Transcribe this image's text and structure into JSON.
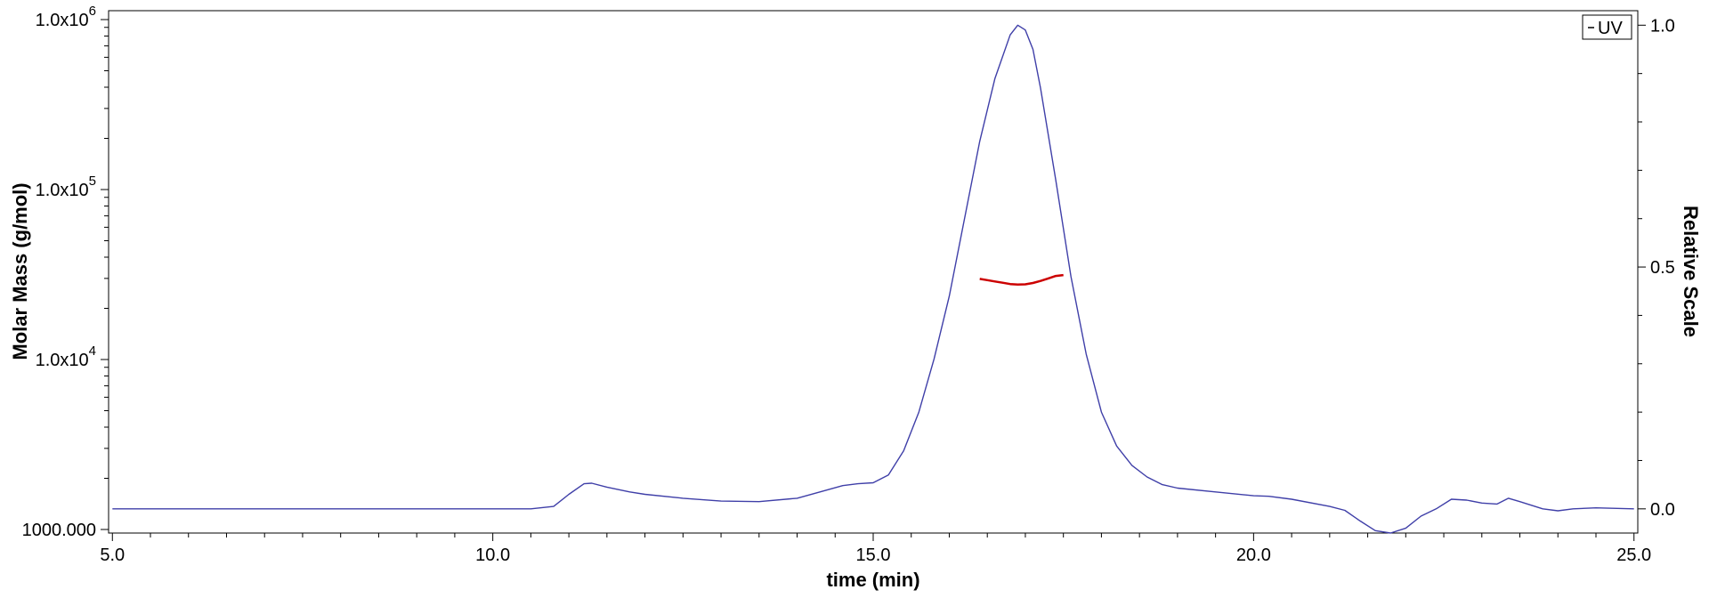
{
  "chart_data": {
    "type": "line",
    "title": "",
    "xlabel": "time (min)",
    "ylabel_left": "Molar Mass (g/mol)",
    "ylabel_right": "Relative Scale",
    "x_range": [
      4.95,
      25.05
    ],
    "y_left_scale": "log",
    "y_left_range": [
      1000,
      1000000
    ],
    "y_right_range": [
      -0.05,
      1.03
    ],
    "grid": false,
    "legend_position": "top-right",
    "x_ticks": [
      5.0,
      10.0,
      15.0,
      20.0,
      25.0
    ],
    "x_tick_labels": [
      "5.0",
      "10.0",
      "15.0",
      "20.0",
      "25.0"
    ],
    "y_left_ticks": [
      {
        "value": 1000,
        "base": "1000.000",
        "exp": ""
      },
      {
        "value": 10000,
        "base": "1.0x10",
        "exp": "4"
      },
      {
        "value": 100000,
        "base": "1.0x10",
        "exp": "5"
      },
      {
        "value": 1000000,
        "base": "1.0x10",
        "exp": "6"
      }
    ],
    "y_right_ticks": [
      0.0,
      0.5,
      1.0
    ],
    "y_right_tick_labels": [
      "0.0",
      "0.5",
      "1.0"
    ],
    "series": [
      {
        "name": "UV",
        "axis": "right",
        "color": "#3f3fa8",
        "x": [
          5.0,
          6.0,
          7.0,
          8.0,
          9.0,
          10.0,
          10.5,
          10.8,
          11.0,
          11.2,
          11.3,
          11.5,
          11.8,
          12.0,
          12.5,
          13.0,
          13.5,
          14.0,
          14.3,
          14.6,
          14.8,
          15.0,
          15.2,
          15.4,
          15.6,
          15.8,
          16.0,
          16.2,
          16.4,
          16.6,
          16.8,
          16.9,
          17.0,
          17.1,
          17.2,
          17.4,
          17.6,
          17.8,
          18.0,
          18.2,
          18.4,
          18.6,
          18.8,
          19.0,
          19.5,
          20.0,
          20.2,
          20.5,
          21.0,
          21.2,
          21.4,
          21.6,
          21.8,
          22.0,
          22.2,
          22.4,
          22.6,
          22.8,
          23.0,
          23.2,
          23.35,
          23.5,
          23.8,
          24.0,
          24.2,
          24.5,
          25.0
        ],
        "y": [
          0.0,
          0.0,
          0.0,
          0.0,
          0.0,
          0.0,
          0.0,
          0.005,
          0.03,
          0.052,
          0.053,
          0.045,
          0.035,
          0.03,
          0.022,
          0.016,
          0.015,
          0.022,
          0.035,
          0.048,
          0.052,
          0.054,
          0.07,
          0.12,
          0.2,
          0.31,
          0.44,
          0.6,
          0.76,
          0.89,
          0.98,
          1.0,
          0.99,
          0.95,
          0.87,
          0.68,
          0.48,
          0.32,
          0.2,
          0.13,
          0.09,
          0.066,
          0.05,
          0.043,
          0.035,
          0.027,
          0.026,
          0.02,
          0.005,
          -0.003,
          -0.025,
          -0.045,
          -0.05,
          -0.04,
          -0.015,
          0.0,
          0.02,
          0.018,
          0.012,
          0.01,
          0.022,
          0.015,
          0.0,
          -0.004,
          0.0,
          0.002,
          0.0
        ]
      },
      {
        "name": "",
        "axis": "left",
        "color": "#cc0000",
        "x": [
          16.4,
          16.5,
          16.6,
          16.7,
          16.8,
          16.9,
          17.0,
          17.1,
          17.2,
          17.3,
          17.4,
          17.5
        ],
        "y": [
          29800,
          29300,
          28800,
          28300,
          27800,
          27600,
          27700,
          28200,
          29000,
          30000,
          31000,
          31400
        ]
      }
    ],
    "legend": [
      {
        "label": "UV"
      }
    ]
  }
}
